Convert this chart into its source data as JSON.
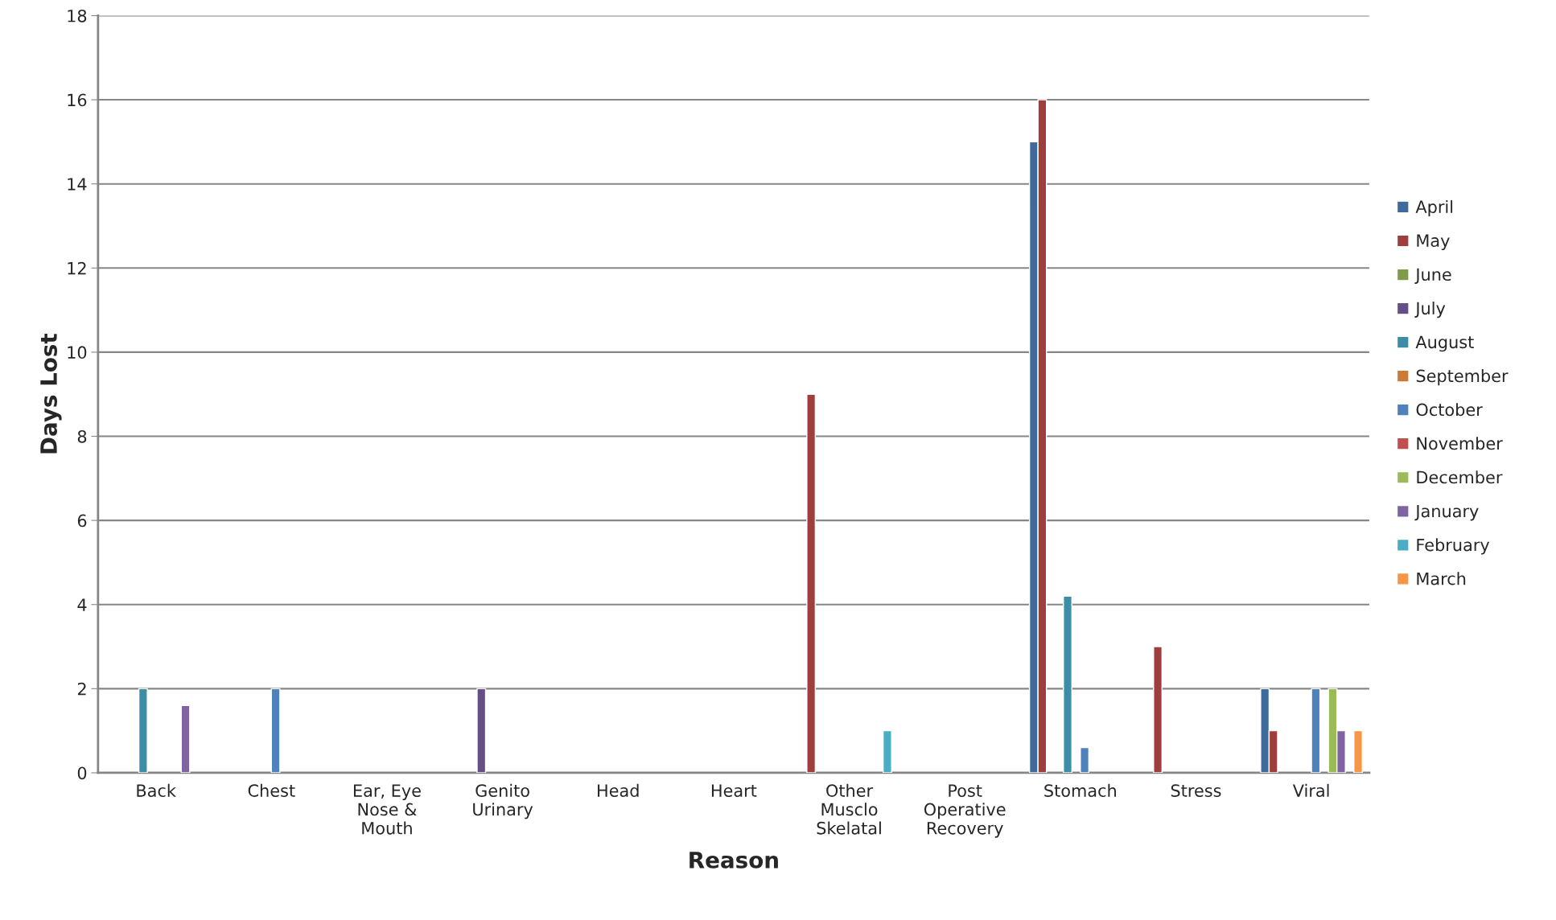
{
  "chart_data": {
    "type": "bar",
    "xlabel": "Reason",
    "ylabel": "Days Lost",
    "categories": [
      "Back",
      "Chest",
      "Ear, Eye\nNose &\nMouth",
      "Genito\nUrinary",
      "Head",
      "Heart",
      "Other\nMusclo\nSkelatal",
      "Post\nOperative\nRecovery",
      "Stomach",
      "Stress",
      "Viral"
    ],
    "series": [
      {
        "name": "April",
        "color": "#3e6a9c",
        "values": [
          null,
          null,
          null,
          null,
          null,
          null,
          null,
          null,
          15,
          null,
          2
        ]
      },
      {
        "name": "May",
        "color": "#9e3f3d",
        "values": [
          null,
          null,
          null,
          null,
          null,
          null,
          9,
          null,
          16,
          3,
          1
        ]
      },
      {
        "name": "June",
        "color": "#7f9a48",
        "values": [
          null,
          null,
          null,
          null,
          null,
          null,
          null,
          null,
          null,
          null,
          null
        ]
      },
      {
        "name": "July",
        "color": "#654f84",
        "values": [
          null,
          null,
          null,
          2,
          null,
          null,
          null,
          null,
          null,
          null,
          null
        ]
      },
      {
        "name": "August",
        "color": "#3b8ea5",
        "values": [
          2,
          null,
          null,
          null,
          null,
          null,
          null,
          null,
          4.2,
          null,
          null
        ]
      },
      {
        "name": "September",
        "color": "#cc7a36",
        "values": [
          null,
          null,
          null,
          null,
          null,
          null,
          null,
          null,
          null,
          null,
          null
        ]
      },
      {
        "name": "October",
        "color": "#4f81bd",
        "values": [
          null,
          2,
          null,
          null,
          null,
          null,
          null,
          null,
          0.6,
          null,
          2
        ]
      },
      {
        "name": "November",
        "color": "#c0504d",
        "values": [
          null,
          null,
          null,
          null,
          null,
          null,
          null,
          null,
          null,
          null,
          null
        ]
      },
      {
        "name": "December",
        "color": "#9bbb59",
        "values": [
          null,
          null,
          null,
          null,
          null,
          null,
          null,
          null,
          null,
          null,
          2
        ]
      },
      {
        "name": "January",
        "color": "#8064a2",
        "values": [
          1.6,
          null,
          null,
          null,
          null,
          null,
          null,
          null,
          null,
          null,
          1
        ]
      },
      {
        "name": "February",
        "color": "#4bacc6",
        "values": [
          null,
          null,
          null,
          null,
          null,
          null,
          1,
          null,
          null,
          null,
          null
        ]
      },
      {
        "name": "March",
        "color": "#f79646",
        "values": [
          null,
          null,
          null,
          null,
          null,
          null,
          null,
          null,
          null,
          null,
          1
        ]
      }
    ],
    "ylim": [
      0,
      18
    ],
    "yticks": [
      0,
      2,
      4,
      6,
      8,
      10,
      12,
      14,
      16,
      18
    ],
    "grid": "y",
    "legend": "right"
  }
}
